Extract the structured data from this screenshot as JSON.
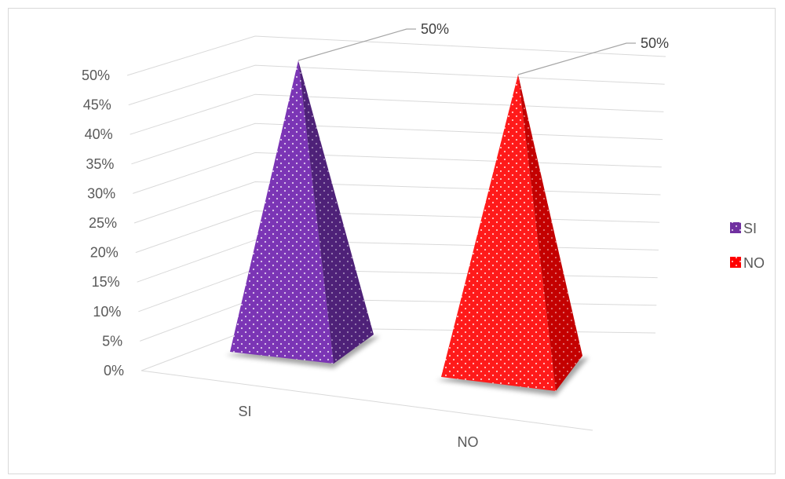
{
  "chart_data": {
    "type": "bar",
    "style": "3d-pyramid",
    "categories": [
      "SI",
      "NO"
    ],
    "values": [
      50,
      50
    ],
    "data_labels": [
      "50%",
      "50%"
    ],
    "ylim": [
      0,
      50
    ],
    "y_ticks": [
      "0%",
      "5%",
      "10%",
      "15%",
      "20%",
      "25%",
      "30%",
      "35%",
      "40%",
      "45%",
      "50%"
    ],
    "grid": true,
    "legend_position": "right",
    "legend": [
      {
        "label": "SI",
        "color": "#7030a0"
      },
      {
        "label": "NO",
        "color": "#ff0000"
      }
    ],
    "colors": {
      "si_front": "#7b35b5",
      "si_side": "#4e2178",
      "no_front": "#ff1a1a",
      "no_side": "#c40000"
    }
  }
}
